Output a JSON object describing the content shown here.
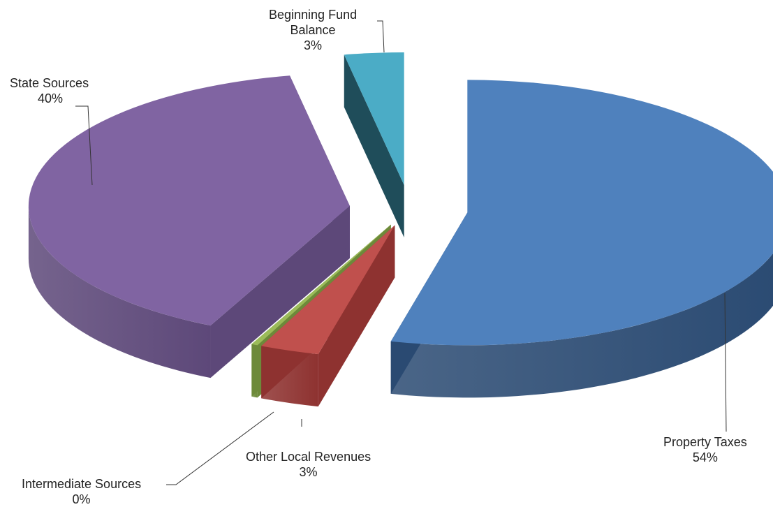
{
  "chart_data": {
    "type": "pie",
    "style": "3d-exploded",
    "slices": [
      {
        "label": "Property Taxes",
        "value": 54,
        "pct_label": "54%",
        "color": "#4f81bd",
        "side_color": "#2a4a72"
      },
      {
        "label": "Other Local Revenues",
        "value": 3,
        "pct_label": "3%",
        "color": "#c0504d",
        "side_color": "#8e3230"
      },
      {
        "label": "Intermediate Sources",
        "value": 0,
        "pct_label": "0%",
        "color": "#9bbb59",
        "side_color": "#6d8a3a"
      },
      {
        "label": "State Sources",
        "value": 40,
        "pct_label": "40%",
        "color": "#8064a2",
        "side_color": "#5d4879"
      },
      {
        "label": "Beginning Fund Balance",
        "label_lines": [
          "Beginning Fund",
          "Balance"
        ],
        "value": 3,
        "pct_label": "3%",
        "color": "#4bacc6",
        "side_color": "#1f4d5a"
      }
    ]
  }
}
